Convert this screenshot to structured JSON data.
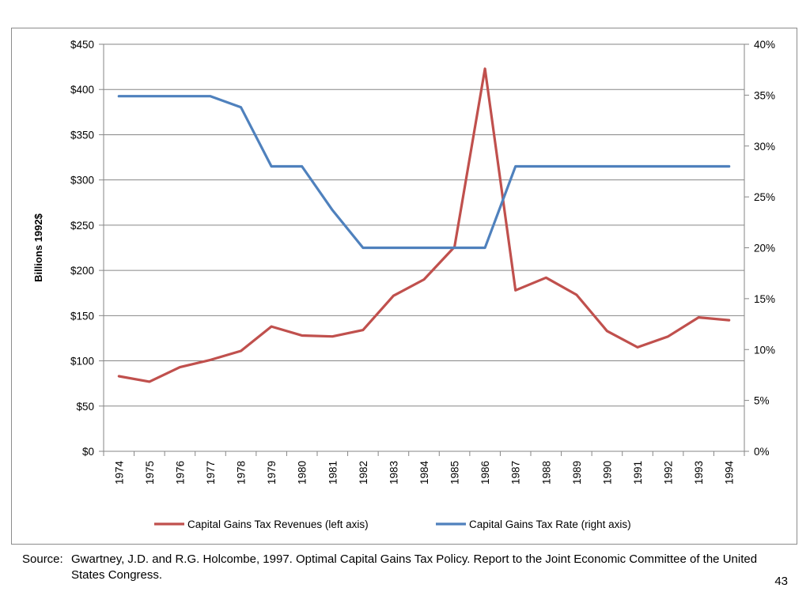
{
  "chart_data": {
    "type": "line",
    "x": [
      "1974",
      "1975",
      "1976",
      "1977",
      "1978",
      "1979",
      "1980",
      "1981",
      "1982",
      "1983",
      "1984",
      "1985",
      "1986",
      "1987",
      "1988",
      "1989",
      "1990",
      "1991",
      "1992",
      "1993",
      "1994"
    ],
    "ylabel": "Billions 1992$",
    "ylim": [
      0,
      450
    ],
    "yticks": [
      "$0",
      "$50",
      "$100",
      "$150",
      "$200",
      "$250",
      "$300",
      "$350",
      "$400",
      "$450"
    ],
    "y2lim": [
      0,
      40
    ],
    "y2ticks": [
      "0%",
      "5%",
      "10%",
      "15%",
      "20%",
      "25%",
      "30%",
      "35%",
      "40%"
    ],
    "grid": true,
    "legend_position": "bottom",
    "series": [
      {
        "name": "Capital Gains Tax Revenues (left axis)",
        "axis": "left",
        "color": "#c0504d",
        "values": [
          83,
          77,
          93,
          101,
          111,
          138,
          128,
          127,
          134,
          172,
          190,
          226,
          423,
          178,
          192,
          173,
          133,
          115,
          127,
          148,
          145
        ]
      },
      {
        "name": "Capital Gains Tax Rate (right axis)",
        "axis": "right",
        "color": "#4f81bd",
        "values": [
          34.9,
          34.9,
          34.9,
          34.9,
          33.8,
          28,
          28,
          23.7,
          20,
          20,
          20,
          20,
          20,
          28,
          28,
          28,
          28,
          28,
          28,
          28,
          28
        ]
      }
    ]
  },
  "footer": {
    "source_label": "Source:",
    "source_text": "Gwartney, J.D. and R.G. Holcombe, 1997. Optimal Capital Gains Tax Policy. Report to the Joint Economic Committee of the United States Congress.",
    "page_number": "43"
  }
}
